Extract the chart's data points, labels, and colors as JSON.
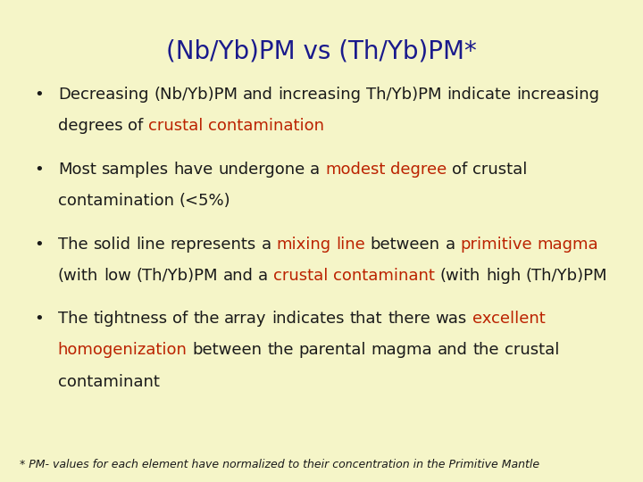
{
  "background_color": "#f5f5c8",
  "title": "(Nb/Yb)PM vs (Th/Yb)PM*",
  "title_color": "#1a1a8c",
  "title_fontsize": 20,
  "bullet_points": [
    {
      "segments": [
        {
          "text": "Decreasing (Nb/Yb)PM and increasing Th/Yb)PM indicate increasing degrees of ",
          "color": "#1a1a1a"
        },
        {
          "text": "crustal contamination",
          "color": "#bb2200"
        }
      ]
    },
    {
      "segments": [
        {
          "text": "Most samples have undergone a ",
          "color": "#1a1a1a"
        },
        {
          "text": "modest degree",
          "color": "#bb2200"
        },
        {
          "text": " of crustal contamination (<5%)",
          "color": "#1a1a1a"
        }
      ]
    },
    {
      "segments": [
        {
          "text": "The solid line represents a ",
          "color": "#1a1a1a"
        },
        {
          "text": "mixing line",
          "color": "#bb2200"
        },
        {
          "text": " between a ",
          "color": "#1a1a1a"
        },
        {
          "text": "primitive magma",
          "color": "#bb2200"
        },
        {
          "text": " (with low (Th/Yb)PM and a ",
          "color": "#1a1a1a"
        },
        {
          "text": "crustal contaminant",
          "color": "#bb2200"
        },
        {
          "text": " (with high (Th/Yb)PM",
          "color": "#1a1a1a"
        }
      ]
    },
    {
      "segments": [
        {
          "text": "The tightness of the array indicates that there was ",
          "color": "#1a1a1a"
        },
        {
          "text": "excellent homogenization",
          "color": "#bb2200"
        },
        {
          "text": " between the parental magma and the crustal contaminant",
          "color": "#1a1a1a"
        }
      ]
    }
  ],
  "footnote": "* PM- values for each element have normalized to their concentration in the Primitive Mantle",
  "footnote_color": "#1a1a1a",
  "footnote_fontsize": 9,
  "bullet_fontsize": 13,
  "bullet_color": "#1a1a1a",
  "bullet_symbol": "•",
  "fig_width": 7.2,
  "fig_height": 5.4,
  "dpi": 100
}
